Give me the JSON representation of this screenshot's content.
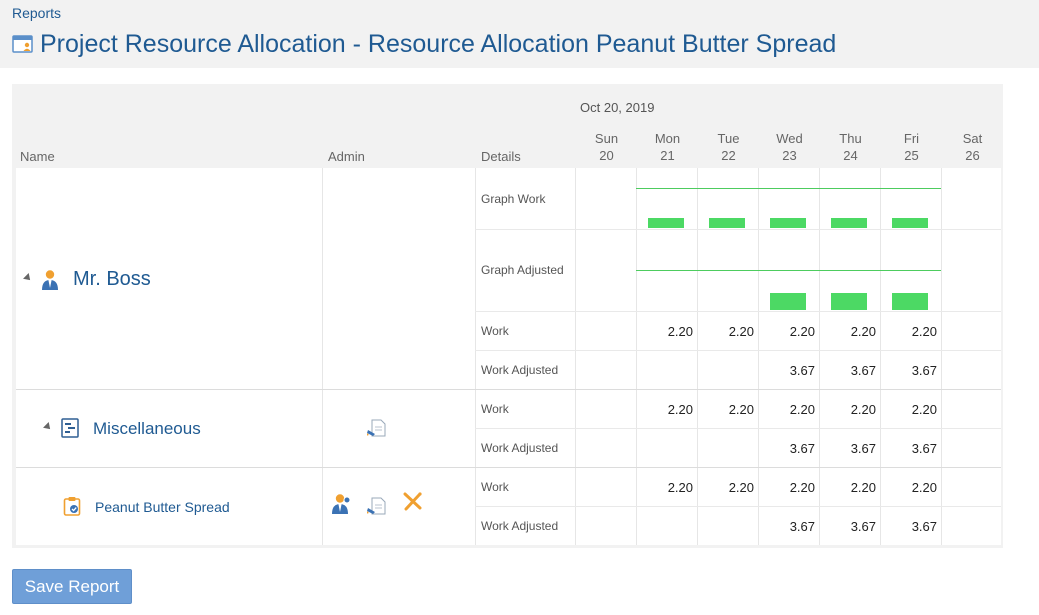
{
  "breadcrumb": "Reports",
  "page_title": "Project Resource Allocation - Resource Allocation Peanut Butter Spread",
  "table": {
    "columns": {
      "name": "Name",
      "admin": "Admin",
      "details": "Details"
    },
    "date_label": "Oct 20, 2019",
    "days": [
      {
        "dow": "Sun",
        "day": "20"
      },
      {
        "dow": "Mon",
        "day": "21"
      },
      {
        "dow": "Tue",
        "day": "22"
      },
      {
        "dow": "Wed",
        "day": "23"
      },
      {
        "dow": "Thu",
        "day": "24"
      },
      {
        "dow": "Fri",
        "day": "25"
      },
      {
        "dow": "Sat",
        "day": "26"
      }
    ],
    "resource": {
      "name": "Mr. Boss",
      "details": [
        "Graph Work",
        "Graph Adjusted",
        "Work",
        "Work Adjusted"
      ],
      "graph_work": [
        0,
        2.2,
        2.2,
        2.2,
        2.2,
        2.2,
        0
      ],
      "graph_adjusted": [
        0,
        0,
        0,
        3.67,
        3.67,
        3.67,
        0
      ],
      "work": [
        "",
        "2.20",
        "2.20",
        "2.20",
        "2.20",
        "2.20",
        ""
      ],
      "work_adjusted": [
        "",
        "",
        "",
        "3.67",
        "3.67",
        "3.67",
        ""
      ]
    },
    "project": {
      "name": "Miscellaneous",
      "details": [
        "Work",
        "Work Adjusted"
      ],
      "work": [
        "",
        "2.20",
        "2.20",
        "2.20",
        "2.20",
        "2.20",
        ""
      ],
      "work_adjusted": [
        "",
        "",
        "",
        "3.67",
        "3.67",
        "3.67",
        ""
      ]
    },
    "task": {
      "name": "Peanut Butter Spread",
      "details": [
        "Work",
        "Work Adjusted"
      ],
      "work": [
        "",
        "2.20",
        "2.20",
        "2.20",
        "2.20",
        "2.20",
        ""
      ],
      "work_adjusted": [
        "",
        "",
        "",
        "3.67",
        "3.67",
        "3.67",
        ""
      ]
    }
  },
  "colors": {
    "accent": "#1f5a92",
    "graph": "#4cd964",
    "button": "#6f9fd8"
  },
  "icons": {
    "title": "calendar-resource-icon",
    "resource": "person-icon",
    "project": "gantt-icon",
    "task": "clipboard-check-icon",
    "edit": "edit-note-icon",
    "assign": "assign-person-icon",
    "remove": "remove-icon"
  },
  "save_button": "Save Report"
}
